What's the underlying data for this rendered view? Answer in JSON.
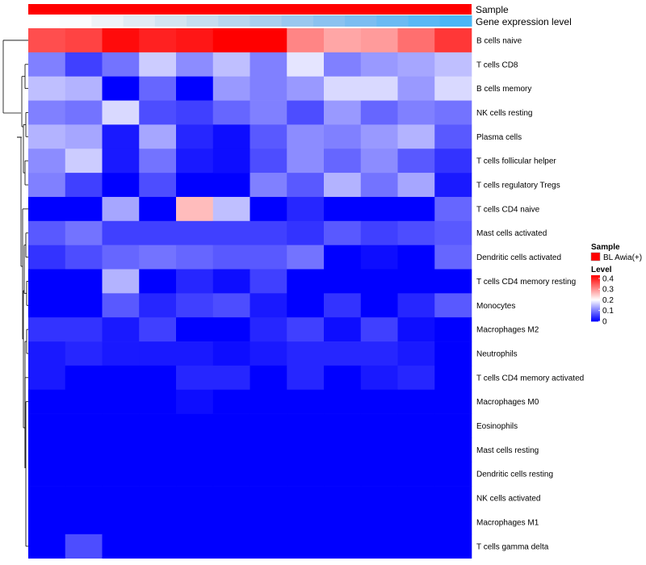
{
  "chart_data": {
    "type": "heatmap",
    "title": "",
    "annotations": {
      "sample": {
        "label": "Sample",
        "color": "#ff0000"
      },
      "gene_expression": {
        "label": "Gene expression level",
        "colors": [
          "#ffffff",
          "#fafbfd",
          "#eef3f8",
          "#e1ebf4",
          "#d3e4f1",
          "#c6ddef",
          "#b8d6ee",
          "#a9cfee",
          "#9ac8ef",
          "#8bc2f0",
          "#7cbdf1",
          "#6bbaf3",
          "#5ab8f5",
          "#4ab6f6"
        ]
      }
    },
    "rows": [
      "B cells naive",
      "T cells CD8",
      "B cells memory",
      "NK cells resting",
      "Plasma cells",
      "T cells follicular helper",
      "T cells regulatory  Tregs",
      "T cells CD4 naive",
      "Mast cells activated",
      "Dendritic cells activated",
      "T cells CD4 memory resting",
      "Monocytes",
      "Macrophages M2",
      "Neutrophils",
      "T cells CD4 memory activated",
      "Macrophages M0",
      "Eosinophils",
      "Mast cells resting",
      "Dendritic cells resting",
      "NK cells activated",
      "Macrophages M1",
      "T cells gamma delta"
    ],
    "values": [
      [
        0.36,
        0.37,
        0.42,
        0.4,
        0.41,
        0.43,
        0.43,
        0.31,
        0.28,
        0.29,
        0.33,
        0.38
      ],
      [
        0.1,
        0.05,
        0.09,
        0.16,
        0.11,
        0.15,
        0.1,
        0.18,
        0.1,
        0.12,
        0.13,
        0.15
      ],
      [
        0.15,
        0.14,
        0.0,
        0.08,
        0.0,
        0.12,
        0.1,
        0.12,
        0.17,
        0.17,
        0.12,
        0.17
      ],
      [
        0.1,
        0.09,
        0.17,
        0.06,
        0.05,
        0.08,
        0.1,
        0.06,
        0.12,
        0.08,
        0.1,
        0.09
      ],
      [
        0.14,
        0.13,
        0.02,
        0.13,
        0.03,
        0.01,
        0.07,
        0.11,
        0.1,
        0.12,
        0.14,
        0.07
      ],
      [
        0.11,
        0.16,
        0.02,
        0.09,
        0.02,
        0.01,
        0.06,
        0.11,
        0.08,
        0.11,
        0.07,
        0.04
      ],
      [
        0.1,
        0.05,
        0.0,
        0.06,
        0.0,
        0.0,
        0.1,
        0.07,
        0.14,
        0.09,
        0.13,
        0.02
      ],
      [
        0.0,
        0.0,
        0.13,
        0.0,
        0.26,
        0.15,
        0.0,
        0.03,
        0.0,
        0.0,
        0.0,
        0.08
      ],
      [
        0.07,
        0.09,
        0.05,
        0.05,
        0.05,
        0.05,
        0.05,
        0.04,
        0.07,
        0.05,
        0.06,
        0.07
      ],
      [
        0.04,
        0.06,
        0.08,
        0.09,
        0.08,
        0.07,
        0.07,
        0.09,
        0.0,
        0.01,
        0.0,
        0.08
      ],
      [
        0.0,
        0.0,
        0.14,
        0.0,
        0.03,
        0.01,
        0.05,
        0.0,
        0.0,
        0.0,
        0.0,
        0.0
      ],
      [
        0.0,
        0.0,
        0.07,
        0.03,
        0.05,
        0.06,
        0.02,
        0.0,
        0.04,
        0.0,
        0.03,
        0.07
      ],
      [
        0.04,
        0.04,
        0.02,
        0.05,
        0.0,
        0.0,
        0.03,
        0.05,
        0.01,
        0.05,
        0.01,
        0.0
      ],
      [
        0.02,
        0.03,
        0.02,
        0.02,
        0.02,
        0.01,
        0.02,
        0.03,
        0.03,
        0.03,
        0.02,
        0.0
      ],
      [
        0.02,
        0.0,
        0.0,
        0.0,
        0.03,
        0.03,
        0.0,
        0.03,
        0.0,
        0.02,
        0.03,
        0.0
      ],
      [
        0.0,
        0.0,
        0.0,
        0.0,
        0.01,
        0.0,
        0.0,
        0.0,
        0.0,
        0.0,
        0.0,
        0.0
      ],
      [
        0.0,
        0.0,
        0.0,
        0.0,
        0.0,
        0.0,
        0.0,
        0.0,
        0.0,
        0.0,
        0.0,
        0.0
      ],
      [
        0.0,
        0.0,
        0.0,
        0.0,
        0.0,
        0.0,
        0.0,
        0.0,
        0.0,
        0.0,
        0.0,
        0.0
      ],
      [
        0.0,
        0.0,
        0.0,
        0.0,
        0.0,
        0.0,
        0.0,
        0.0,
        0.0,
        0.0,
        0.0,
        0.0
      ],
      [
        0.0,
        0.0,
        0.0,
        0.0,
        0.0,
        0.0,
        0.0,
        0.0,
        0.0,
        0.0,
        0.0,
        0.0
      ],
      [
        0.0,
        0.0,
        0.0,
        0.0,
        0.0,
        0.0,
        0.0,
        0.0,
        0.0,
        0.0,
        0.0,
        0.0
      ],
      [
        0.0,
        0.06,
        0.0,
        0.0,
        0.0,
        0.0,
        0.0,
        0.0,
        0.0,
        0.0,
        0.0,
        0.0
      ]
    ],
    "color_scale": {
      "min": 0,
      "mid": 0.2,
      "max": 0.43,
      "low": "#0000ff",
      "mid_color": "#ffffff",
      "high": "#ff0000"
    },
    "legend": {
      "placement": "right",
      "sample_title": "Sample",
      "sample_entry": "BL Awia(+)",
      "level_title": "Level",
      "ticks": [
        "0.4",
        "0.3",
        "0.2",
        "0.1",
        "0"
      ],
      "tick_values": [
        0.4,
        0.3,
        0.2,
        0.1,
        0
      ]
    },
    "dendrogram": {
      "side": "left"
    }
  }
}
